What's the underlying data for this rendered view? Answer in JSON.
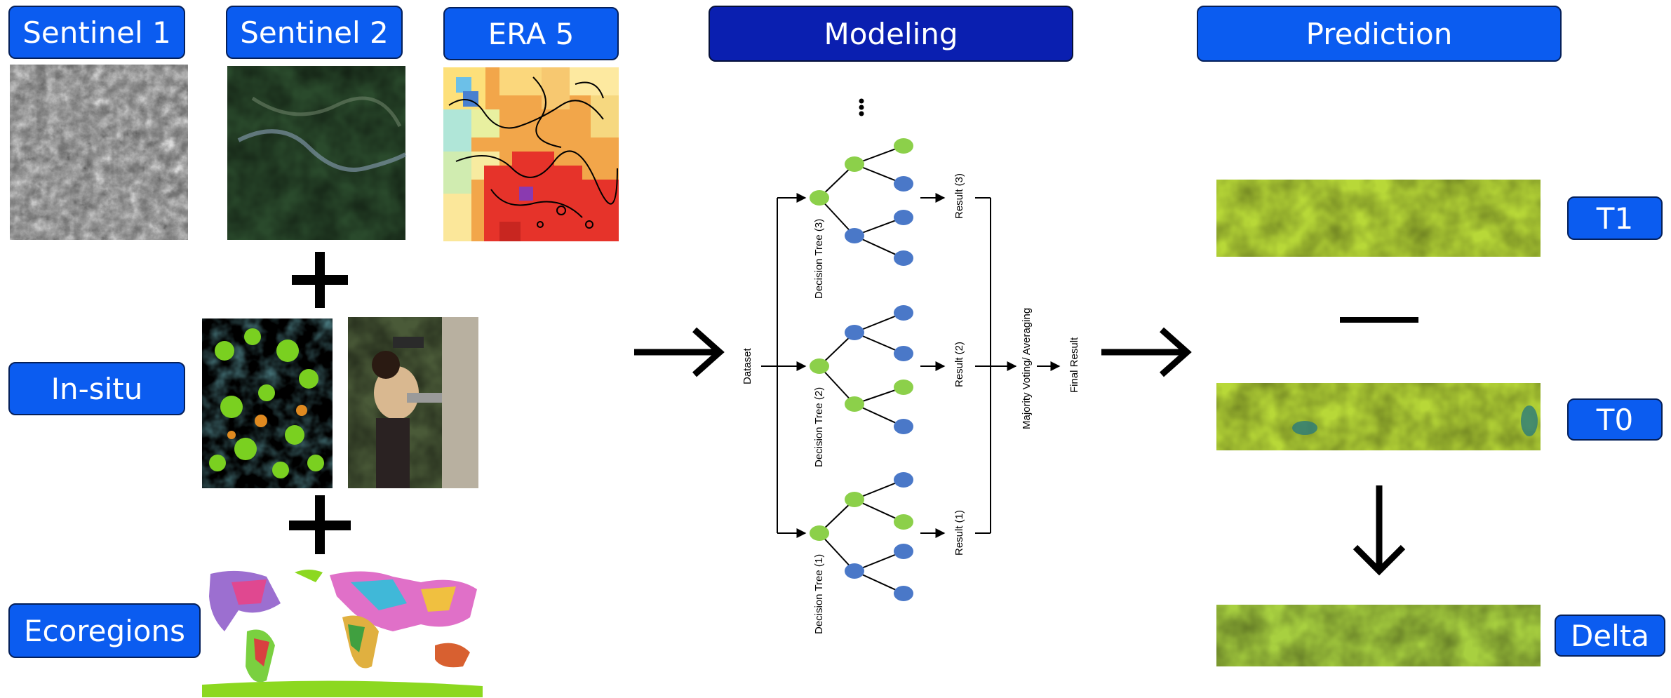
{
  "inputs": {
    "sentinel1": "Sentinel 1",
    "sentinel2": "Sentinel 2",
    "era5": "ERA 5",
    "insitu": "In-situ",
    "ecoregions": "Ecoregions"
  },
  "modeling": {
    "title": "Modeling",
    "dataset": "Dataset",
    "trees": [
      "Decision Tree (3)",
      "Decision Tree (2)",
      "Decision Tree (1)"
    ],
    "results": [
      "Result (3)",
      "Result (2)",
      "Result (1)"
    ],
    "aggregation": "Majority Voting/ Averaging",
    "final": "Final Result"
  },
  "prediction": {
    "title": "Prediction",
    "t1": "T1",
    "t0": "T0",
    "delta": "Delta"
  },
  "colors": {
    "label_blue": "#0b5cf0",
    "modeling_blue": "#0a1fb0",
    "node_green": "#8cd04a",
    "node_blue": "#4a78c8"
  }
}
